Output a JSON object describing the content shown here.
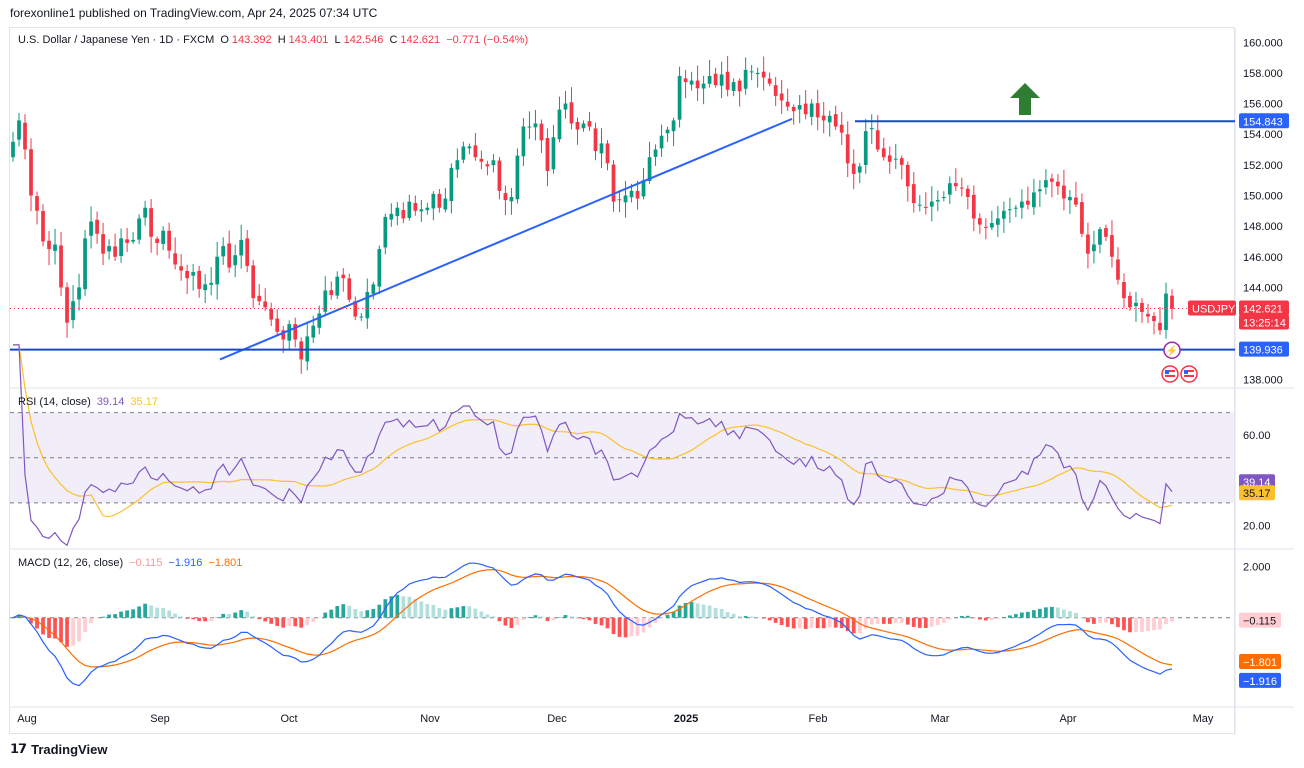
{
  "header": {
    "publish_line": "forexonline1 published on TradingView.com, Apr 24, 2025 07:34 UTC"
  },
  "main_legend": {
    "symbol": "U.S. Dollar / Japanese Yen · 1D · FXCM",
    "o_key": "O",
    "o_val": "143.392",
    "h_key": "H",
    "h_val": "143.401",
    "l_key": "L",
    "l_val": "142.546",
    "c_key": "C",
    "c_val": "142.621",
    "change": "−0.771 (−0.54%)"
  },
  "rsi_legend": {
    "label": "RSI (14, close)",
    "v1": "39.14",
    "v2": "35.17"
  },
  "macd_legend": {
    "label": "MACD (12, 26, close)",
    "v1": "−0.115",
    "v2": "−1.916",
    "v3": "−1.801"
  },
  "footer": {
    "brand": "TradingView"
  },
  "colors": {
    "up": "#089981",
    "down": "#f23645",
    "line": "#2962ff",
    "rsi": "#7e57c2",
    "rsi_ma": "#fbc02d",
    "macd": "#2962ff",
    "signal": "#ff6d00",
    "hist_up_strong": "#26a69a",
    "hist_up_weak": "#b2dfdb",
    "hist_down_strong": "#ff5252",
    "hist_down_weak": "#ffcdd2",
    "level": "#1848cc",
    "arrow": "#2e7d32"
  },
  "chart_data": [
    {
      "type": "candlestick",
      "title": "U.S. Dollar / Japanese Yen · 1D · FXCM",
      "symbol": "USDJPY",
      "ylim": [
        137.5,
        160.8
      ],
      "y_ticks": [
        "160.000",
        "158.000",
        "156.000",
        "154.000",
        "152.000",
        "150.000",
        "148.000",
        "146.000",
        "144.000",
        "142.000",
        "140.000",
        "138.000"
      ],
      "x_ticks": [
        "Aug",
        "Sep",
        "Oct",
        "Nov",
        "Dec",
        "2025",
        "Feb",
        "Mar",
        "Apr",
        "May"
      ],
      "last_price": "142.621",
      "countdown": "13:25:14",
      "horizontal_levels": [
        {
          "label": "154.843",
          "price": 154.843
        },
        {
          "label": "139.936",
          "price": 139.936
        }
      ],
      "trendline": {
        "from": {
          "date": "2024-09-16",
          "price": 139.3
        },
        "to": {
          "date": "2025-01-29",
          "price": 155.0
        }
      },
      "closes": [
        153.5,
        154.9,
        153.0,
        150.0,
        149.0,
        147.0,
        146.5,
        146.8,
        144.0,
        141.7,
        143.1,
        144.0,
        147.2,
        148.3,
        147.5,
        146.2,
        146.7,
        146.0,
        147.2,
        146.9,
        147.1,
        148.5,
        149.2,
        147.3,
        146.9,
        147.7,
        146.4,
        145.5,
        145.1,
        144.6,
        145.0,
        143.9,
        144.2,
        144.3,
        146.0,
        146.7,
        145.3,
        146.1,
        147.1,
        145.4,
        143.3,
        143.1,
        142.7,
        141.9,
        141.1,
        140.6,
        141.6,
        140.6,
        139.3,
        140.8,
        141.5,
        142.3,
        143.8,
        143.5,
        144.7,
        144.6,
        143.2,
        142.1,
        142.1,
        143.7,
        144.2,
        146.5,
        148.6,
        148.8,
        149.2,
        148.5,
        149.6,
        149.0,
        149.1,
        149.2,
        150.1,
        149.2,
        149.8,
        151.8,
        152.3,
        153.2,
        153.2,
        152.5,
        152.2,
        151.9,
        152.3,
        150.3,
        149.7,
        149.9,
        152.6,
        154.5,
        154.5,
        154.7,
        153.6,
        151.6,
        153.8,
        155.6,
        156.0,
        154.7,
        154.3,
        154.7,
        154.5,
        152.9,
        153.4,
        152.1,
        149.6,
        149.7,
        150.0,
        150.3,
        149.8,
        151.0,
        152.5,
        153.0,
        153.9,
        154.3,
        154.9,
        157.8,
        157.4,
        157.5,
        157.0,
        157.3,
        157.8,
        157.2,
        157.9,
        156.9,
        157.4,
        156.8,
        158.2,
        158.1,
        158.0,
        157.7,
        157.3,
        156.5,
        156.2,
        155.8,
        155.5,
        155.9,
        155.3,
        156.0,
        155.1,
        154.9,
        155.2,
        154.5,
        154.1,
        152.1,
        151.4,
        151.9,
        154.2,
        154.4,
        153.0,
        152.5,
        152.2,
        152.4,
        152.0,
        150.6,
        149.5,
        149.4,
        149.2,
        149.6,
        149.7,
        149.9,
        150.8,
        150.6,
        150.5,
        149.9,
        148.5,
        148.1,
        147.9,
        148.2,
        148.5,
        149.0,
        149.1,
        149.2,
        149.6,
        149.4,
        150.2,
        150.4,
        151.0,
        150.9,
        150.6,
        149.8,
        149.9,
        149.4,
        147.5,
        146.2,
        146.8,
        147.8,
        147.3,
        146.0,
        144.5,
        143.3,
        142.7,
        143.0,
        142.4,
        142.1,
        141.8,
        141.2,
        143.6,
        142.6
      ]
    },
    {
      "type": "line",
      "title": "RSI (14, close)",
      "ylim": [
        10,
        80
      ],
      "y_ticks": [
        "60.00",
        "20.00"
      ],
      "bands": {
        "upper": 70,
        "middle": 50,
        "lower": 30
      },
      "series": [
        {
          "name": "RSI",
          "last": "39.14"
        },
        {
          "name": "RSI-based MA",
          "last": "35.17"
        }
      ]
    },
    {
      "type": "line",
      "title": "MACD (12, 26, close)",
      "ylim": [
        -3.4,
        2.6
      ],
      "y_ticks": [
        "2.000"
      ],
      "series": [
        {
          "name": "Histogram",
          "last": "−0.115"
        },
        {
          "name": "MACD",
          "last": "−1.916"
        },
        {
          "name": "Signal",
          "last": "−1.801"
        }
      ]
    }
  ]
}
